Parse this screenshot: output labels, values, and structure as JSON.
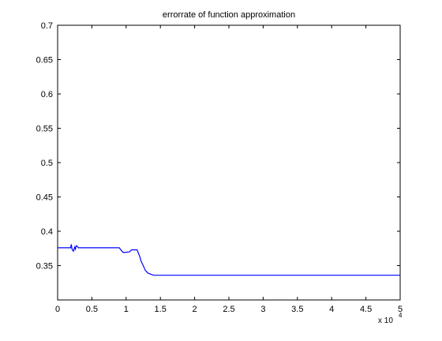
{
  "chart_data": {
    "type": "line",
    "title": "errorrate of function approximation",
    "xlabel": "",
    "ylabel": "",
    "xlim": [
      0,
      50000
    ],
    "ylim": [
      0.3,
      0.7
    ],
    "x_multiplier_label": "x 10",
    "x_multiplier_exponent": "4",
    "x_ticks": [
      0,
      5000,
      10000,
      15000,
      20000,
      25000,
      30000,
      35000,
      40000,
      45000,
      50000
    ],
    "x_tick_labels": [
      "0",
      "0.5",
      "1",
      "1.5",
      "2",
      "2.5",
      "3",
      "3.5",
      "4",
      "4.5",
      "5"
    ],
    "y_ticks": [
      0.35,
      0.4,
      0.45,
      0.5,
      0.55,
      0.6,
      0.65,
      0.7
    ],
    "y_tick_labels": [
      "0.35",
      "0.4",
      "0.45",
      "0.5",
      "0.55",
      "0.6",
      "0.65",
      "0.7"
    ],
    "grid": false,
    "line_color": "#0000ff",
    "series": [
      {
        "x": [
          0,
          1900,
          2000,
          2100,
          2300,
          2500,
          2600,
          2700,
          2900,
          3000,
          3100,
          9000,
          9300,
          9600,
          10500,
          10800,
          11600,
          12000,
          12200,
          12500,
          12800,
          13200,
          14000,
          14500,
          30000,
          50000
        ],
        "y": [
          0.376,
          0.376,
          0.381,
          0.374,
          0.371,
          0.377,
          0.374,
          0.379,
          0.378,
          0.376,
          0.376,
          0.376,
          0.372,
          0.369,
          0.37,
          0.373,
          0.373,
          0.363,
          0.356,
          0.35,
          0.343,
          0.339,
          0.336,
          0.336,
          0.336,
          0.336
        ]
      }
    ]
  }
}
